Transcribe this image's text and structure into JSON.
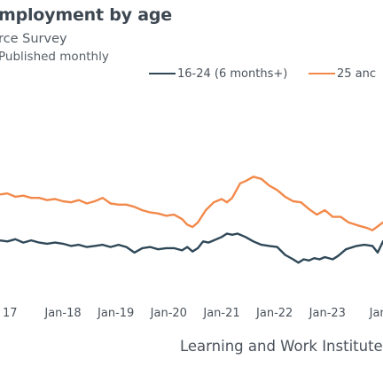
{
  "title": "mployment by age",
  "subtitle": "rce Survey",
  "note": "Published monthly",
  "source": "Learning and Work Institute a",
  "colors": {
    "series_a": "#2f4858",
    "series_b": "#f2894a",
    "text": "#4a525b"
  },
  "chart_data": {
    "type": "line",
    "xlabel": "",
    "ylabel": "",
    "x_tick_labels": [
      "17",
      "Jan-18",
      "Jan-19",
      "Jan-20",
      "Jan-21",
      "Jan-22",
      "Jan-23",
      "Jan-"
    ],
    "x_ticks": [
      2017,
      2018,
      2019,
      2020,
      2021,
      2022,
      2023,
      2024
    ],
    "xlim": [
      2016.81,
      2024.05
    ],
    "ylim": [
      0,
      100
    ],
    "grid": false,
    "legend": "top-right",
    "series": [
      {
        "name": "16-24 (6 months+)",
        "color": "#2f4858",
        "points": [
          [
            2016.8,
            42
          ],
          [
            2016.95,
            41
          ],
          [
            2017.1,
            43
          ],
          [
            2017.25,
            40
          ],
          [
            2017.4,
            42
          ],
          [
            2017.55,
            40
          ],
          [
            2017.7,
            39
          ],
          [
            2017.85,
            40
          ],
          [
            2018.0,
            39
          ],
          [
            2018.15,
            37
          ],
          [
            2018.3,
            38
          ],
          [
            2018.45,
            36
          ],
          [
            2018.6,
            37
          ],
          [
            2018.75,
            38
          ],
          [
            2018.9,
            36
          ],
          [
            2019.05,
            38
          ],
          [
            2019.2,
            36
          ],
          [
            2019.35,
            31
          ],
          [
            2019.5,
            35
          ],
          [
            2019.65,
            36
          ],
          [
            2019.8,
            34
          ],
          [
            2019.95,
            35
          ],
          [
            2020.1,
            35
          ],
          [
            2020.25,
            33
          ],
          [
            2020.35,
            36
          ],
          [
            2020.45,
            32
          ],
          [
            2020.55,
            35
          ],
          [
            2020.65,
            41
          ],
          [
            2020.75,
            40
          ],
          [
            2020.85,
            42
          ],
          [
            2021.0,
            45
          ],
          [
            2021.1,
            48
          ],
          [
            2021.2,
            47
          ],
          [
            2021.3,
            48
          ],
          [
            2021.45,
            45
          ],
          [
            2021.6,
            41
          ],
          [
            2021.75,
            38
          ],
          [
            2021.9,
            37
          ],
          [
            2022.05,
            36
          ],
          [
            2022.2,
            29
          ],
          [
            2022.35,
            25
          ],
          [
            2022.45,
            22
          ],
          [
            2022.55,
            25
          ],
          [
            2022.65,
            24
          ],
          [
            2022.75,
            26
          ],
          [
            2022.85,
            25
          ],
          [
            2022.95,
            27
          ],
          [
            2023.1,
            25
          ],
          [
            2023.2,
            28
          ],
          [
            2023.35,
            34
          ],
          [
            2023.55,
            37
          ],
          [
            2023.7,
            38
          ],
          [
            2023.85,
            37
          ],
          [
            2023.95,
            31
          ],
          [
            2024.05,
            41
          ]
        ]
      },
      {
        "name": "25 anc",
        "color": "#f2894a",
        "points": [
          [
            2016.8,
            83
          ],
          [
            2016.95,
            84
          ],
          [
            2017.1,
            81
          ],
          [
            2017.25,
            82
          ],
          [
            2017.4,
            80
          ],
          [
            2017.55,
            80
          ],
          [
            2017.7,
            78
          ],
          [
            2017.85,
            79
          ],
          [
            2018.0,
            77
          ],
          [
            2018.15,
            76
          ],
          [
            2018.3,
            78
          ],
          [
            2018.45,
            75
          ],
          [
            2018.6,
            77
          ],
          [
            2018.75,
            80
          ],
          [
            2018.9,
            75
          ],
          [
            2019.05,
            74
          ],
          [
            2019.2,
            74
          ],
          [
            2019.35,
            72
          ],
          [
            2019.5,
            69
          ],
          [
            2019.65,
            67
          ],
          [
            2019.8,
            66
          ],
          [
            2019.95,
            64
          ],
          [
            2020.1,
            65
          ],
          [
            2020.25,
            61
          ],
          [
            2020.35,
            56
          ],
          [
            2020.45,
            54
          ],
          [
            2020.55,
            58
          ],
          [
            2020.7,
            69
          ],
          [
            2020.85,
            76
          ],
          [
            2021.0,
            79
          ],
          [
            2021.1,
            76
          ],
          [
            2021.2,
            80
          ],
          [
            2021.35,
            93
          ],
          [
            2021.45,
            95
          ],
          [
            2021.6,
            99
          ],
          [
            2021.75,
            97
          ],
          [
            2021.9,
            91
          ],
          [
            2022.05,
            87
          ],
          [
            2022.2,
            81
          ],
          [
            2022.35,
            77
          ],
          [
            2022.5,
            76
          ],
          [
            2022.65,
            70
          ],
          [
            2022.8,
            65
          ],
          [
            2022.95,
            69
          ],
          [
            2023.1,
            63
          ],
          [
            2023.25,
            63
          ],
          [
            2023.4,
            58
          ],
          [
            2023.6,
            55
          ],
          [
            2023.75,
            53
          ],
          [
            2023.85,
            51
          ],
          [
            2024.05,
            58
          ]
        ]
      }
    ]
  }
}
